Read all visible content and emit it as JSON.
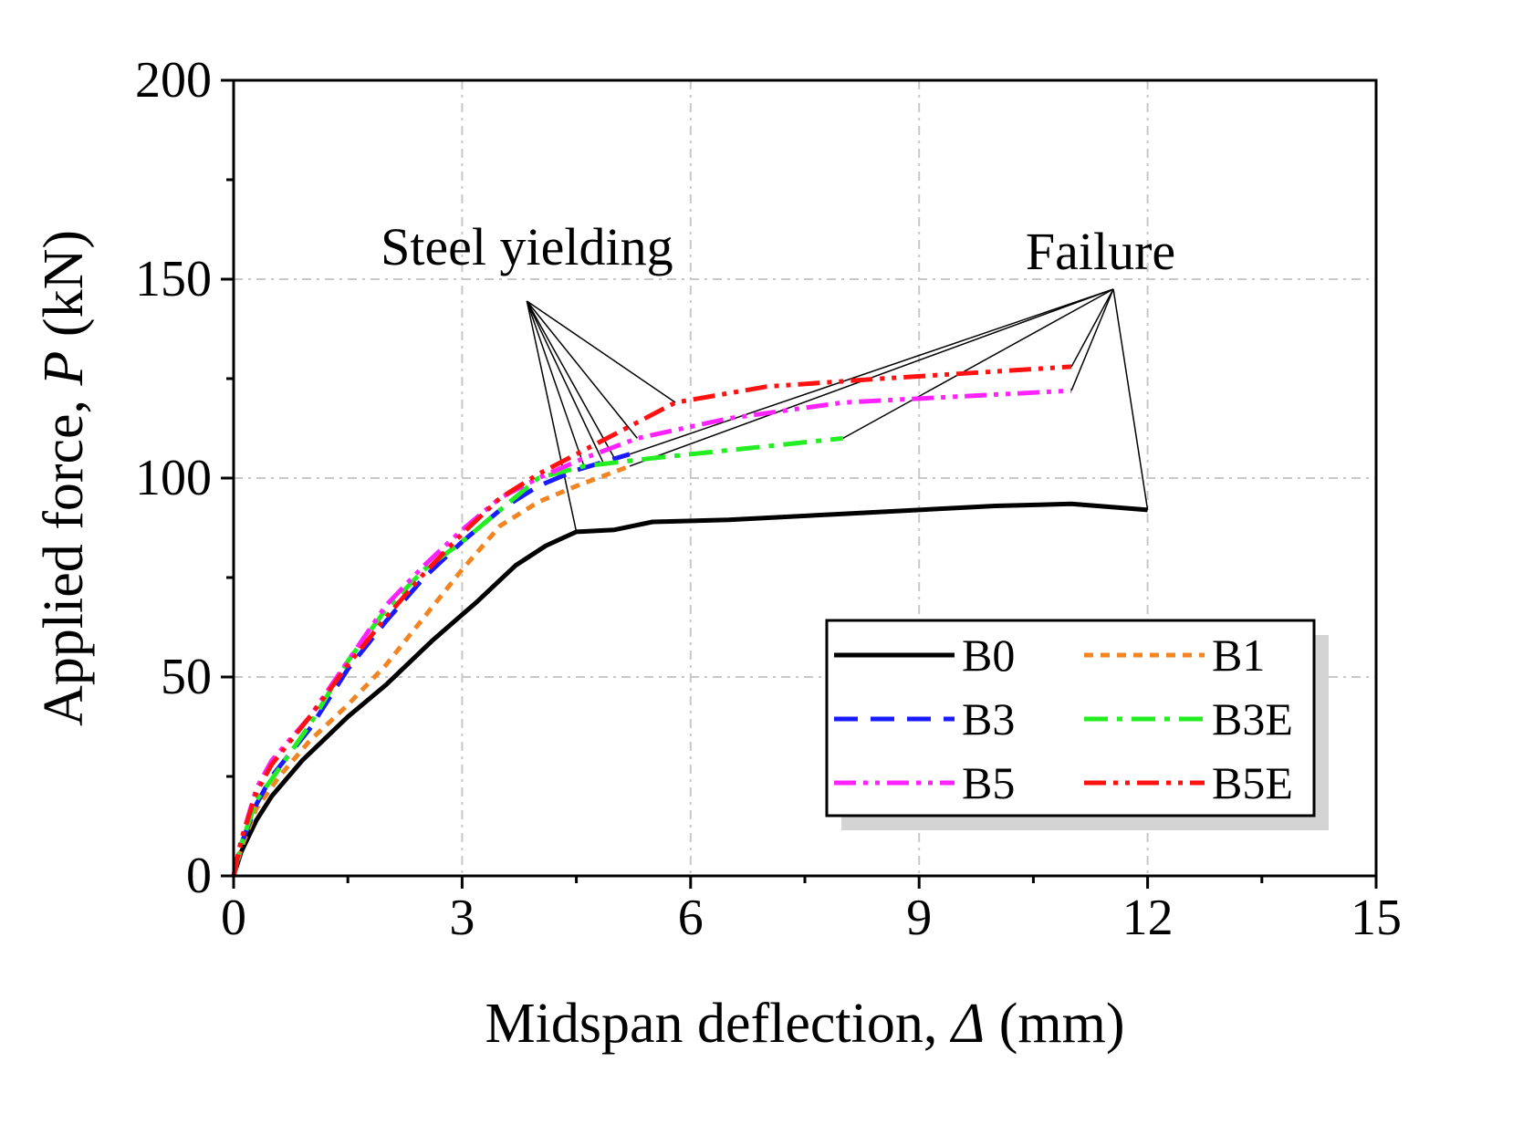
{
  "chart_data": {
    "type": "line",
    "title": "",
    "xlabel": {
      "prefix": "Midspan deflection, ",
      "symbol": "Δ",
      "suffix": " (mm)"
    },
    "ylabel": {
      "prefix": "Applied force, ",
      "symbol": "P",
      "suffix": " (kN)"
    },
    "xlim": [
      0,
      15
    ],
    "ylim": [
      0,
      200
    ],
    "xticks": [
      0,
      3,
      6,
      9,
      12,
      15
    ],
    "yticks": [
      0,
      50,
      100,
      150,
      200
    ],
    "grid": true,
    "legend_position": "bottom-right",
    "series": [
      {
        "name": "B0",
        "color": "#000000",
        "dash": "solid",
        "x": [
          0,
          0.1,
          0.3,
          0.5,
          0.9,
          1.5,
          2.0,
          2.6,
          3.2,
          3.7,
          4.1,
          4.5,
          5.0,
          5.5,
          6.5,
          8.0,
          10.0,
          11.0,
          12.0
        ],
        "y": [
          0,
          6,
          14,
          20,
          29,
          40,
          48,
          59,
          69,
          78,
          83,
          86.5,
          87,
          89,
          89.5,
          91,
          93,
          93.5,
          92
        ]
      },
      {
        "name": "B1",
        "color": "#f28522",
        "dash": "short-dash",
        "x": [
          0,
          0.1,
          0.3,
          0.6,
          1.0,
          1.5,
          2.0,
          2.5,
          3.0,
          3.5,
          4.0,
          4.5,
          5.2
        ],
        "y": [
          0,
          7,
          17,
          25,
          34,
          43,
          53,
          65,
          77,
          88,
          94,
          98,
          103
        ]
      },
      {
        "name": "B3",
        "color": "#1a1aff",
        "dash": "dash",
        "x": [
          0,
          0.1,
          0.3,
          0.5,
          1.0,
          1.5,
          2.0,
          2.5,
          3.0,
          3.5,
          4.0,
          4.5,
          5.2
        ],
        "y": [
          0,
          8,
          18,
          25,
          37,
          52,
          64,
          75,
          84,
          92,
          98,
          102,
          106
        ]
      },
      {
        "name": "B3E",
        "color": "#22ee22",
        "dash": "dash-dot",
        "x": [
          0,
          0.1,
          0.3,
          0.6,
          1.0,
          1.5,
          2.0,
          2.5,
          3.0,
          3.5,
          4.0,
          4.6,
          5.5,
          8.0
        ],
        "y": [
          0,
          8,
          19,
          27,
          38,
          54,
          67,
          77,
          84,
          92,
          100,
          103,
          105,
          110
        ]
      },
      {
        "name": "B5",
        "color": "#ff22ff",
        "dash": "dash-dot-dot",
        "x": [
          0,
          0.1,
          0.3,
          0.5,
          1.0,
          1.5,
          2.0,
          2.5,
          3.0,
          3.5,
          4.0,
          4.6,
          5.3,
          6.5,
          8.0,
          11.0
        ],
        "y": [
          0,
          9,
          22,
          29,
          40,
          54,
          68,
          78,
          87,
          95,
          100,
          105,
          110,
          115,
          119,
          122
        ]
      },
      {
        "name": "B5E",
        "color": "#ff1111",
        "dash": "dash-dot-dot",
        "x": [
          0,
          0.1,
          0.3,
          0.5,
          1.0,
          1.5,
          2.0,
          2.5,
          3.0,
          3.5,
          4.0,
          4.6,
          5.8,
          7.0,
          8.5,
          11.0
        ],
        "y": [
          0,
          9,
          21,
          28,
          40,
          53,
          65,
          76,
          86,
          95,
          101,
          107,
          119,
          123,
          125,
          128
        ]
      }
    ],
    "annotations": [
      {
        "text": "Steel yielding",
        "anchor": {
          "x": 3.85,
          "y": 144.5
        },
        "targets": [
          {
            "x": 4.5,
            "y": 86.5
          },
          {
            "x": 4.6,
            "y": 103
          },
          {
            "x": 4.85,
            "y": 104
          },
          {
            "x": 5.0,
            "y": 105
          },
          {
            "x": 5.3,
            "y": 110
          },
          {
            "x": 5.8,
            "y": 119
          }
        ]
      },
      {
        "text": "Failure",
        "anchor": {
          "x": 11.55,
          "y": 147.5
        },
        "targets": [
          {
            "x": 12.0,
            "y": 92
          },
          {
            "x": 11.0,
            "y": 122
          },
          {
            "x": 11.0,
            "y": 128
          },
          {
            "x": 8.0,
            "y": 110
          },
          {
            "x": 5.2,
            "y": 103
          },
          {
            "x": 5.2,
            "y": 106
          }
        ]
      }
    ]
  }
}
